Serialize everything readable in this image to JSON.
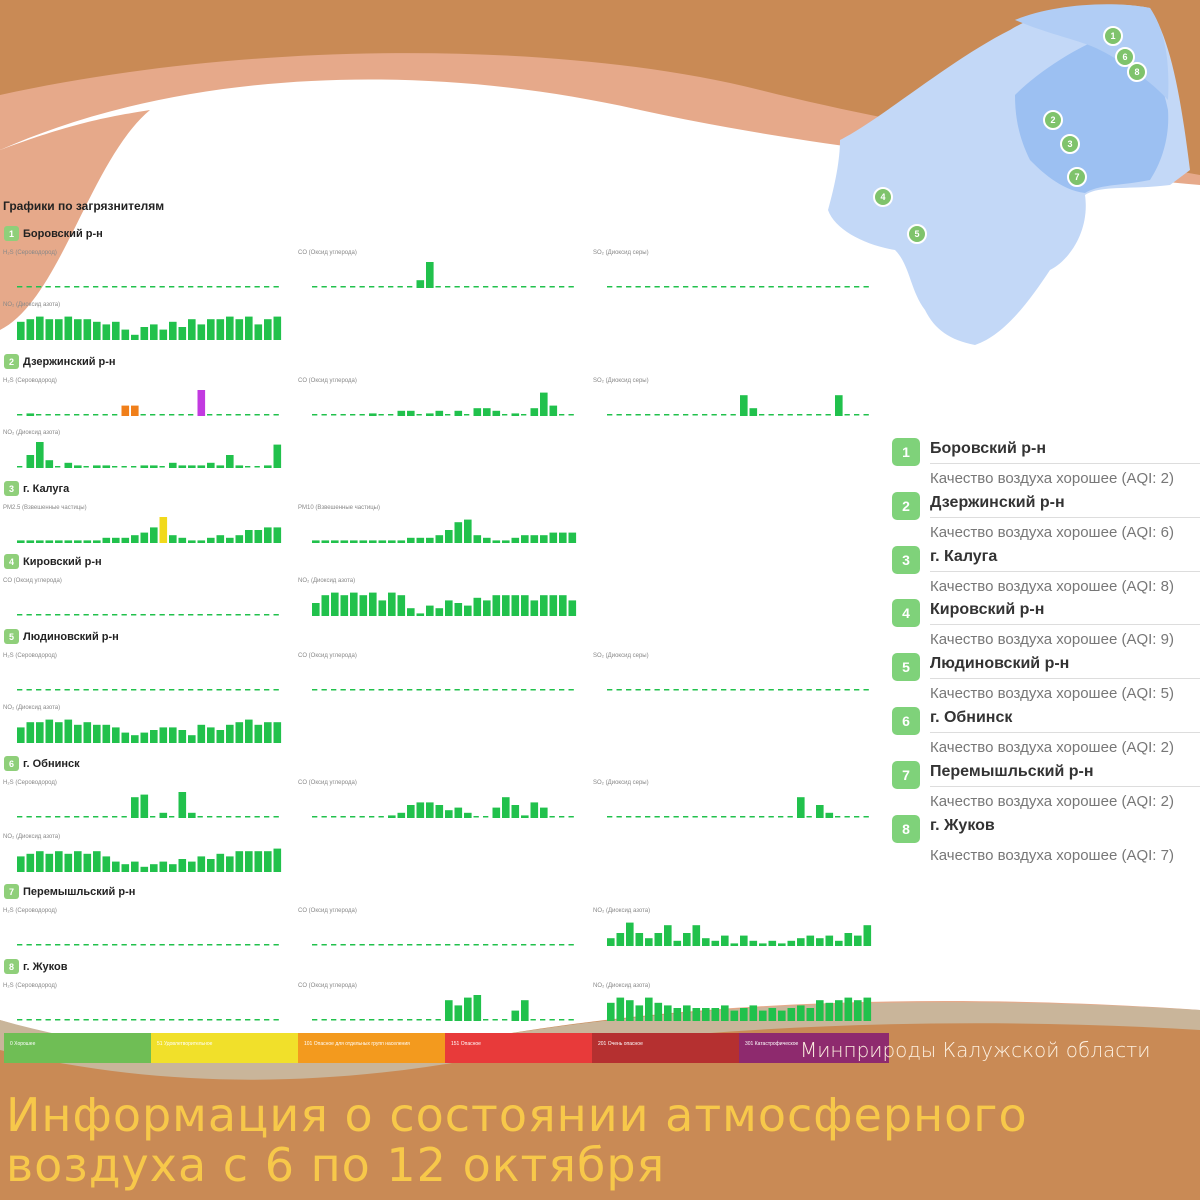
{
  "section_title": "Графики по загрязнителям",
  "colors": {
    "bar": "#21c14c",
    "background": "#c98a55",
    "headline": "#f7c84a"
  },
  "regions": [
    {
      "num": "1",
      "name": "Боровский р-н",
      "charts": [
        {
          "label": "H₂S (Сероводород)",
          "values": [
            0,
            0,
            0,
            0,
            0,
            0,
            0,
            0,
            0,
            0,
            0,
            0,
            0,
            0,
            0,
            0,
            0,
            0,
            0,
            0,
            0,
            0,
            0,
            0,
            0,
            0,
            0,
            0
          ]
        },
        {
          "label": "CO (Оксид углерода)",
          "values": [
            0,
            0,
            0,
            0,
            0,
            0,
            0,
            0,
            0,
            0,
            0,
            0.3,
            1,
            0,
            0,
            0,
            0,
            0,
            0,
            0,
            0,
            0,
            0,
            0,
            0,
            0,
            0,
            0
          ]
        },
        {
          "label": "SO₂ (Диоксид серы)",
          "values": [
            0,
            0,
            0,
            0,
            0,
            0,
            0,
            0,
            0,
            0,
            0,
            0,
            0,
            0,
            0,
            0,
            0,
            0,
            0,
            0,
            0,
            0,
            0,
            0,
            0,
            0,
            0,
            0
          ]
        },
        {
          "label": "NO₂ (Диоксид азота)",
          "values": [
            0.7,
            0.8,
            0.9,
            0.8,
            0.8,
            0.9,
            0.8,
            0.8,
            0.7,
            0.6,
            0.7,
            0.4,
            0.2,
            0.5,
            0.6,
            0.4,
            0.7,
            0.5,
            0.8,
            0.6,
            0.8,
            0.8,
            0.9,
            0.8,
            0.9,
            0.6,
            0.8,
            0.9
          ]
        }
      ]
    },
    {
      "num": "2",
      "name": "Дзержинский р-н",
      "charts": [
        {
          "label": "H₂S (Сероводород)",
          "values": [
            0,
            0.1,
            0,
            0,
            0,
            0,
            0,
            0,
            0,
            0,
            0,
            0.4,
            0.4,
            0,
            0,
            0,
            0,
            0,
            0,
            1,
            0,
            0,
            0,
            0,
            0,
            0,
            0,
            0
          ],
          "special": {
            "11": "#f07f1a",
            "12": "#f07f1a",
            "19": "#c23ae0"
          }
        },
        {
          "label": "CO (Оксид углерода)",
          "values": [
            0,
            0,
            0,
            0,
            0,
            0,
            0.1,
            0,
            0,
            0.2,
            0.2,
            0,
            0.1,
            0.2,
            0,
            0.2,
            0,
            0.3,
            0.3,
            0.2,
            0,
            0.1,
            0,
            0.3,
            0.9,
            0.4,
            0,
            0
          ]
        },
        {
          "label": "SO₂ (Диоксид серы)",
          "values": [
            0,
            0,
            0,
            0,
            0,
            0,
            0,
            0,
            0,
            0,
            0,
            0,
            0,
            0,
            0.8,
            0.3,
            0,
            0,
            0,
            0,
            0,
            0,
            0,
            0,
            0.8,
            0,
            0,
            0
          ]
        },
        {
          "label": "NO₂ (Диоксид азота)",
          "values": [
            0,
            0.5,
            1,
            0.3,
            0,
            0.2,
            0.1,
            0,
            0.1,
            0.1,
            0,
            0,
            0,
            0.1,
            0.1,
            0,
            0.2,
            0.1,
            0.1,
            0.1,
            0.2,
            0.1,
            0.5,
            0.1,
            0,
            0,
            0.1,
            0.9
          ]
        }
      ]
    },
    {
      "num": "3",
      "name": "г. Калуга",
      "charts": [
        {
          "label": "PM2.5 (Взвешенные частицы)",
          "values": [
            0.1,
            0.1,
            0.1,
            0.1,
            0.1,
            0.1,
            0.1,
            0.1,
            0.1,
            0.2,
            0.2,
            0.2,
            0.3,
            0.4,
            0.6,
            1,
            0.3,
            0.2,
            0.1,
            0.1,
            0.2,
            0.3,
            0.2,
            0.3,
            0.5,
            0.5,
            0.6,
            0.6
          ],
          "special": {
            "15": "#f1d91c"
          }
        },
        {
          "label": "PM10 (Взвешенные частицы)",
          "values": [
            0.1,
            0.1,
            0.1,
            0.1,
            0.1,
            0.1,
            0.1,
            0.1,
            0.1,
            0.1,
            0.2,
            0.2,
            0.2,
            0.3,
            0.5,
            0.8,
            0.9,
            0.3,
            0.2,
            0.1,
            0.1,
            0.2,
            0.3,
            0.3,
            0.3,
            0.4,
            0.4,
            0.4
          ]
        }
      ]
    },
    {
      "num": "4",
      "name": "Кировский р-н",
      "charts": [
        {
          "label": "CO (Оксид углерода)",
          "values": [
            0,
            0,
            0,
            0,
            0,
            0,
            0,
            0,
            0,
            0,
            0,
            0,
            0,
            0,
            0,
            0,
            0,
            0,
            0,
            0,
            0,
            0,
            0,
            0,
            0,
            0,
            0,
            0
          ]
        },
        {
          "label": "NO₂ (Диоксид азота)",
          "values": [
            0.5,
            0.8,
            0.9,
            0.8,
            0.9,
            0.8,
            0.9,
            0.6,
            0.9,
            0.8,
            0.3,
            0.1,
            0.4,
            0.3,
            0.6,
            0.5,
            0.4,
            0.7,
            0.6,
            0.8,
            0.8,
            0.8,
            0.8,
            0.6,
            0.8,
            0.8,
            0.8,
            0.6
          ]
        }
      ]
    },
    {
      "num": "5",
      "name": "Людиновский р-н",
      "charts": [
        {
          "label": "H₂S (Сероводород)",
          "values": [
            0,
            0,
            0,
            0,
            0,
            0,
            0,
            0,
            0,
            0,
            0,
            0,
            0,
            0,
            0,
            0,
            0,
            0,
            0,
            0,
            0,
            0,
            0,
            0,
            0,
            0,
            0,
            0
          ]
        },
        {
          "label": "CO (Оксид углерода)",
          "values": [
            0,
            0,
            0,
            0,
            0,
            0,
            0,
            0,
            0,
            0,
            0,
            0,
            0,
            0,
            0,
            0,
            0,
            0,
            0,
            0,
            0,
            0,
            0,
            0,
            0,
            0,
            0,
            0
          ]
        },
        {
          "label": "SO₂ (Диоксид серы)",
          "values": [
            0,
            0,
            0,
            0,
            0,
            0,
            0,
            0,
            0,
            0,
            0,
            0,
            0,
            0,
            0,
            0,
            0,
            0,
            0,
            0,
            0,
            0,
            0,
            0,
            0,
            0,
            0,
            0
          ]
        },
        {
          "label": "NO₂ (Диоксид азота)",
          "values": [
            0.6,
            0.8,
            0.8,
            0.9,
            0.8,
            0.9,
            0.7,
            0.8,
            0.7,
            0.7,
            0.6,
            0.4,
            0.3,
            0.4,
            0.5,
            0.6,
            0.6,
            0.5,
            0.3,
            0.7,
            0.6,
            0.5,
            0.7,
            0.8,
            0.9,
            0.7,
            0.8,
            0.8
          ]
        }
      ]
    },
    {
      "num": "6",
      "name": "г. Обнинск",
      "charts": [
        {
          "label": "H₂S (Сероводород)",
          "values": [
            0,
            0,
            0,
            0,
            0,
            0,
            0,
            0,
            0,
            0,
            0,
            0,
            0.8,
            0.9,
            0,
            0.2,
            0,
            1,
            0.2,
            0,
            0,
            0,
            0,
            0,
            0,
            0,
            0,
            0
          ]
        },
        {
          "label": "CO (Оксид углерода)",
          "values": [
            0,
            0,
            0,
            0,
            0,
            0,
            0,
            0,
            0.1,
            0.2,
            0.5,
            0.6,
            0.6,
            0.5,
            0.3,
            0.4,
            0.2,
            0,
            0,
            0.4,
            0.8,
            0.5,
            0.1,
            0.6,
            0.4,
            0,
            0,
            0
          ]
        },
        {
          "label": "SO₂ (Диоксид серы)",
          "values": [
            0,
            0,
            0,
            0,
            0,
            0,
            0,
            0,
            0,
            0,
            0,
            0,
            0,
            0,
            0,
            0,
            0,
            0,
            0,
            0,
            0.8,
            0,
            0.5,
            0.2,
            0,
            0,
            0,
            0
          ]
        },
        {
          "label": "NO₂ (Диоксид азота)",
          "values": [
            0.6,
            0.7,
            0.8,
            0.7,
            0.8,
            0.7,
            0.8,
            0.7,
            0.8,
            0.6,
            0.4,
            0.3,
            0.4,
            0.2,
            0.3,
            0.4,
            0.3,
            0.5,
            0.4,
            0.6,
            0.5,
            0.7,
            0.6,
            0.8,
            0.8,
            0.8,
            0.8,
            0.9
          ]
        }
      ]
    },
    {
      "num": "7",
      "name": "Перемышльский р-н",
      "charts": [
        {
          "label": "H₂S (Сероводород)",
          "values": [
            0,
            0,
            0,
            0,
            0,
            0,
            0,
            0,
            0,
            0,
            0,
            0,
            0,
            0,
            0,
            0,
            0,
            0,
            0,
            0,
            0,
            0,
            0,
            0,
            0,
            0,
            0,
            0
          ]
        },
        {
          "label": "CO (Оксид углерода)",
          "values": [
            0,
            0,
            0,
            0,
            0,
            0,
            0,
            0,
            0,
            0,
            0,
            0,
            0,
            0,
            0,
            0,
            0,
            0,
            0,
            0,
            0,
            0,
            0,
            0,
            0,
            0,
            0,
            0
          ]
        },
        {
          "label": "NO₂ (Диоксид азота)",
          "values": [
            0.3,
            0.5,
            0.9,
            0.5,
            0.3,
            0.5,
            0.8,
            0.2,
            0.5,
            0.8,
            0.3,
            0.2,
            0.4,
            0.1,
            0.4,
            0.2,
            0.1,
            0.2,
            0.1,
            0.2,
            0.3,
            0.4,
            0.3,
            0.4,
            0.2,
            0.5,
            0.4,
            0.8
          ]
        }
      ]
    },
    {
      "num": "8",
      "name": "г. Жуков",
      "charts": [
        {
          "label": "H₂S (Сероводород)",
          "values": [
            0,
            0,
            0,
            0,
            0,
            0,
            0,
            0,
            0,
            0,
            0,
            0,
            0,
            0,
            0,
            0,
            0,
            0,
            0,
            0,
            0,
            0,
            0,
            0,
            0,
            0,
            0,
            0
          ]
        },
        {
          "label": "CO (Оксид углерода)",
          "values": [
            0,
            0,
            0,
            0,
            0,
            0,
            0,
            0,
            0,
            0,
            0,
            0,
            0,
            0,
            0.8,
            0.6,
            0.9,
            1,
            0,
            0,
            0,
            0.4,
            0.8,
            0,
            0,
            0,
            0,
            0
          ]
        },
        {
          "label": "NO₂ (Диоксид азота)",
          "values": [
            0.7,
            0.9,
            0.8,
            0.6,
            0.9,
            0.7,
            0.6,
            0.5,
            0.6,
            0.5,
            0.5,
            0.5,
            0.6,
            0.4,
            0.5,
            0.6,
            0.4,
            0.5,
            0.4,
            0.5,
            0.6,
            0.5,
            0.8,
            0.7,
            0.8,
            0.9,
            0.8,
            0.9
          ]
        }
      ]
    }
  ],
  "legend": [
    {
      "num": "1",
      "name": "Боровский р-н",
      "status": "Качество воздуха хорошее (AQI: 2)"
    },
    {
      "num": "2",
      "name": "Дзержинский р-н",
      "status": "Качество воздуха хорошее (AQI: 6)"
    },
    {
      "num": "3",
      "name": "г. Калуга",
      "status": "Качество воздуха хорошее (AQI: 8)"
    },
    {
      "num": "4",
      "name": "Кировский р-н",
      "status": "Качество воздуха хорошее (AQI: 9)"
    },
    {
      "num": "5",
      "name": "Людиновский р-н",
      "status": "Качество воздуха хорошее (AQI: 5)"
    },
    {
      "num": "6",
      "name": "г. Обнинск",
      "status": "Качество воздуха хорошее (AQI: 2)"
    },
    {
      "num": "7",
      "name": "Перемышльский р-н",
      "status": "Качество воздуха хорошее (AQI: 2)"
    },
    {
      "num": "8",
      "name": "г. Жуков",
      "status": "Качество воздуха хорошее (AQI: 7)"
    }
  ],
  "map_pins": [
    "1",
    "2",
    "3",
    "4",
    "5",
    "6",
    "7",
    "8"
  ],
  "aqi_scale": [
    {
      "label": "0 Хорошее",
      "color": "#6fbe55"
    },
    {
      "label": "51 Удовлетворительное",
      "color": "#f1e02a"
    },
    {
      "label": "101 Опасное для отдельных групп населения",
      "color": "#f39a1e"
    },
    {
      "label": "151 Опасное",
      "color": "#e83a3a"
    },
    {
      "label": "201 Очень опасное",
      "color": "#b53030"
    },
    {
      "label": "301 Катастрофическое",
      "color": "#8e2a6e"
    }
  ],
  "ministry": "Минприроды Калужской области",
  "headline_line1": "Информация о состоянии атмосферного",
  "headline_line2": "воздуха с 6 по 12 октября"
}
